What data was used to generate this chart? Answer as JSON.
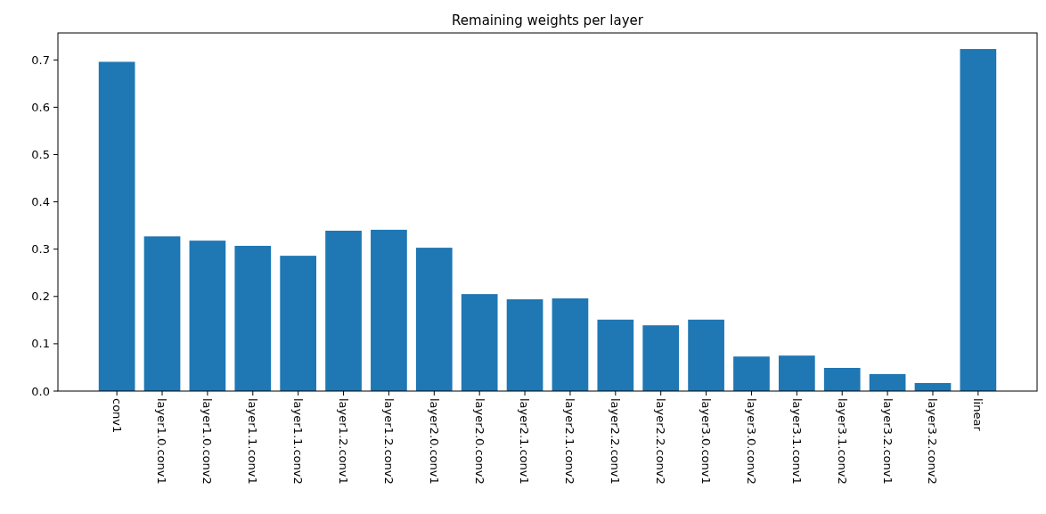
{
  "chart_data": {
    "type": "bar",
    "title": "Remaining weights per layer",
    "categories": [
      "conv1",
      "layer1.0.conv1",
      "layer1.0.conv2",
      "layer1.1.conv1",
      "layer1.1.conv2",
      "layer1.2.conv1",
      "layer1.2.conv2",
      "layer2.0.conv1",
      "layer2.0.conv2",
      "layer2.1.conv1",
      "layer2.1.conv2",
      "layer2.2.conv1",
      "layer2.2.conv2",
      "layer3.0.conv1",
      "layer3.0.conv2",
      "layer3.1.conv1",
      "layer3.1.conv2",
      "layer3.2.conv1",
      "layer3.2.conv2",
      "linear"
    ],
    "values": [
      0.696,
      0.327,
      0.318,
      0.307,
      0.286,
      0.339,
      0.341,
      0.303,
      0.205,
      0.194,
      0.196,
      0.151,
      0.139,
      0.151,
      0.073,
      0.075,
      0.049,
      0.036,
      0.017,
      0.723
    ],
    "color": "#1f77b4",
    "ylim": [
      0,
      0.757
    ],
    "yticks": [
      {
        "value": 0,
        "label": "0.0"
      },
      {
        "value": 0.1,
        "label": "0.1"
      },
      {
        "value": 0.2,
        "label": "0.2"
      },
      {
        "value": 0.3,
        "label": "0.3"
      },
      {
        "value": 0.4,
        "label": "0.4"
      },
      {
        "value": 0.5,
        "label": "0.5"
      },
      {
        "value": 0.6,
        "label": "0.6"
      },
      {
        "value": 0.7,
        "label": "0.7"
      }
    ],
    "grid": false
  }
}
